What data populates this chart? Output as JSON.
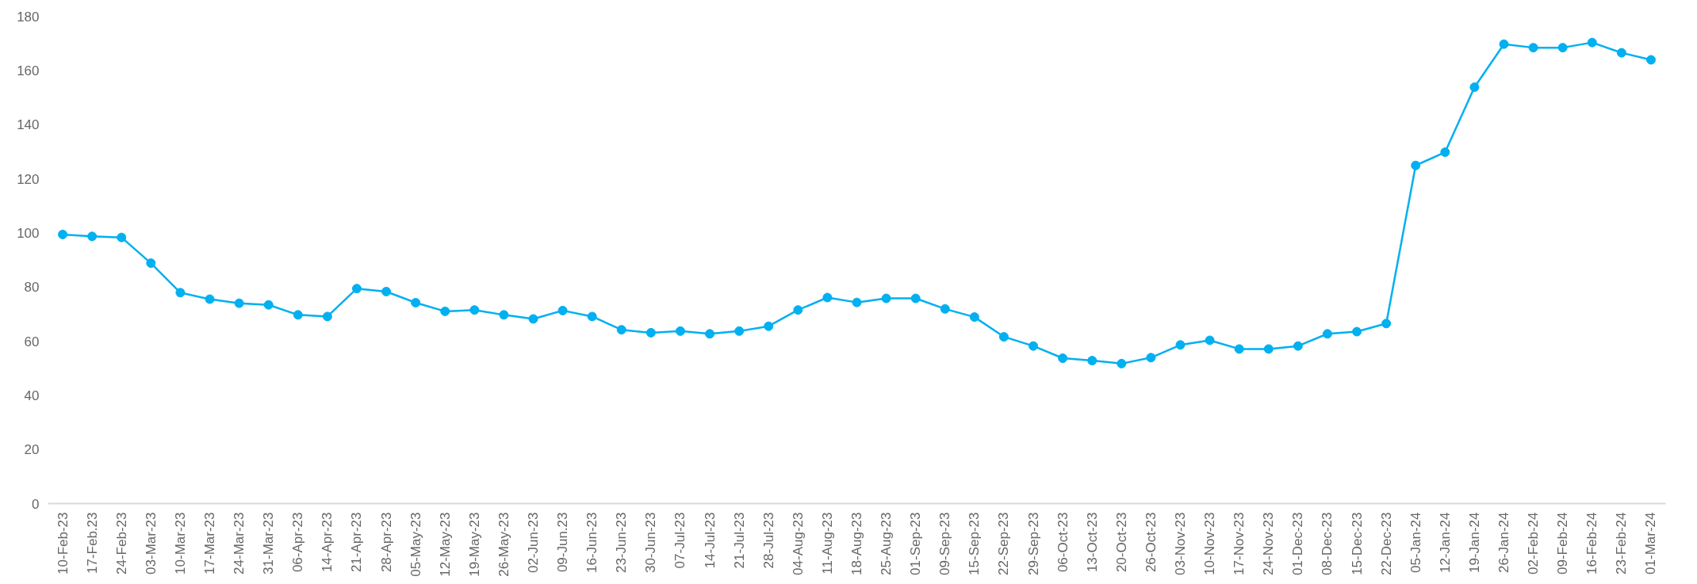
{
  "chart_data": {
    "type": "line",
    "categories": [
      "10-Feb-23",
      "17-Feb.23",
      "24-Feb-23",
      "03-Mar-23",
      "10-Mar-23",
      "17-Mar-23",
      "24-Mar-23",
      "31-Mar-23",
      "06-Apr-23",
      "14-Apr-23",
      "21-Apr-23",
      "28-Apr-23",
      "05-May-23",
      "12-May-23",
      "19-May-23",
      "26-May-23",
      "02-Jun-23",
      "09-Jun.23",
      "16-Jun-23",
      "23-Jun-23",
      "30-Jun-23",
      "07-Jul-23",
      "14-Jul-23",
      "21-Jul-23",
      "28-Jul-23",
      "04-Aug-23",
      "11-Aug-23",
      "18-Aug-23",
      "25-Aug-23",
      "01-Sep-23",
      "09-Sep-23",
      "15-Sep-23",
      "22-Sep-23",
      "29-Sep-23",
      "06-Oct-23",
      "13-Oct-23",
      "20-Oct-23",
      "26-Oct-23",
      "03-Nov-23",
      "10-Nov-23",
      "17-Nov-23",
      "24-Nov-23",
      "01-Dec-23",
      "08-Dec-23",
      "15-Dec-23",
      "22-Dec-23",
      "05-Jan-24",
      "12-Jan-24",
      "19-Jan-24",
      "26-Jan-24",
      "02-Feb-24",
      "09-Feb-24",
      "16-Feb-24",
      "23-Feb-24",
      "01-Mar-24"
    ],
    "series": [
      {
        "color": "#00b0f0",
        "values": [
          99.4,
          98.7,
          98.3,
          88.8,
          77.9,
          75.5,
          74.0,
          73.4,
          69.7,
          69.1,
          79.4,
          78.3,
          74.2,
          71.0,
          71.5,
          69.7,
          68.2,
          71.3,
          69.1,
          64.2,
          63.1,
          63.7,
          62.7,
          63.7,
          65.5,
          71.5,
          76.1,
          74.3,
          75.8,
          75.8,
          71.9,
          68.9,
          61.6,
          58.2,
          53.7,
          52.8,
          51.7,
          53.9,
          58.6,
          60.3,
          57.1,
          57.1,
          58.2,
          62.7,
          63.5,
          66.5,
          124.9,
          129.8,
          153.8,
          169.7,
          168.4,
          168.4,
          170.3,
          166.5,
          163.9
        ]
      }
    ],
    "ylim": [
      0,
      180
    ],
    "yticks": [
      0,
      20,
      40,
      60,
      80,
      100,
      120,
      140,
      160,
      180
    ],
    "grid": false,
    "marker": "circle",
    "line_style": "solid"
  }
}
